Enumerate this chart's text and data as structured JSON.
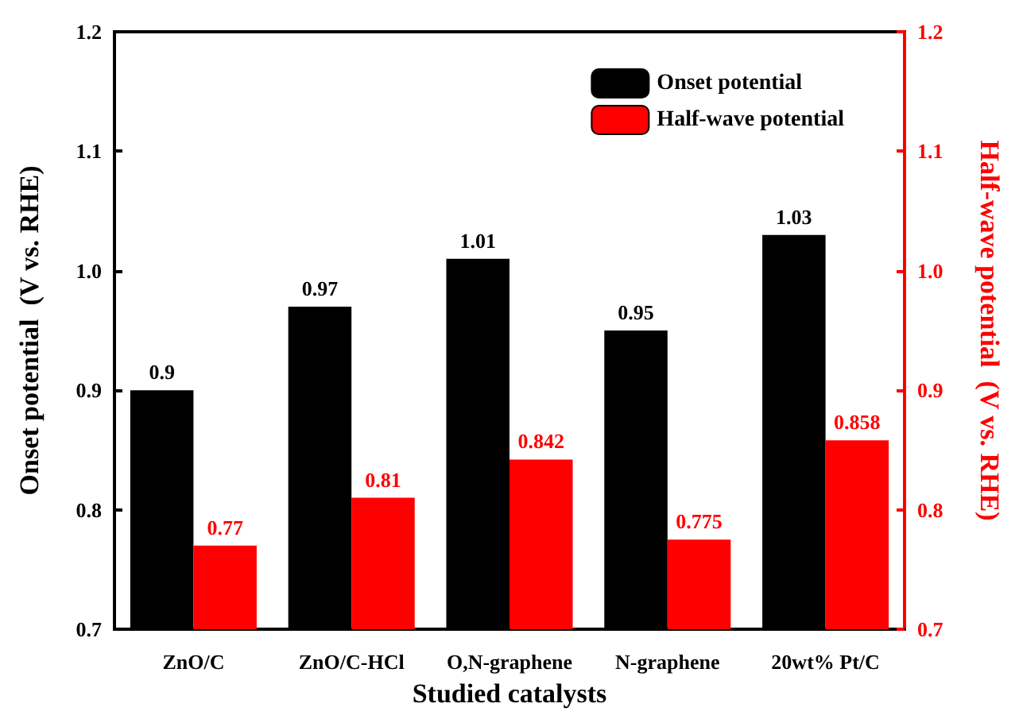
{
  "chart_data": {
    "type": "bar",
    "xlabel": "Studied catalysts",
    "ylabel": "Onset potential  (V vs. RHE)",
    "y2label": "Half-wave potential  (V vs. RHE)",
    "categories": [
      "ZnO/C",
      "ZnO/C-HCl",
      "O,N-graphene",
      "N-graphene",
      "20wt% Pt/C"
    ],
    "series": [
      {
        "name": "Onset potential",
        "color": "#000000",
        "values": [
          0.9,
          0.97,
          1.01,
          0.95,
          1.03
        ]
      },
      {
        "name": "Half-wave potential",
        "color": "#ff0000",
        "axis": "y2",
        "values": [
          0.77,
          0.81,
          0.842,
          0.775,
          0.858
        ]
      }
    ],
    "ylim": [
      0.7,
      1.2
    ],
    "yticks": [
      0.7,
      0.8,
      0.9,
      {
        "value": 1,
        "label": "1.0"
      },
      1.1,
      1.2
    ],
    "y2lim": [
      0.7,
      1.2
    ],
    "y2ticks": [
      0.7,
      0.8,
      0.9,
      {
        "value": 1,
        "label": "1.0"
      },
      1.1,
      1.2
    ],
    "data_labels": true,
    "legend": "top right",
    "grid": false
  }
}
